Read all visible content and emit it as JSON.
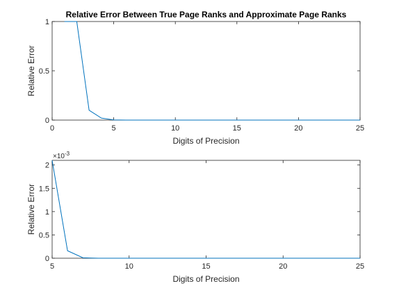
{
  "chart_data": [
    {
      "type": "line",
      "title": "Relative Error Between True Page Ranks and Approximate Page Ranks",
      "xlabel": "Digits of Precision",
      "ylabel": "Relative Error",
      "xlim": [
        0,
        25
      ],
      "ylim": [
        0,
        1
      ],
      "x_ticks": [
        0,
        5,
        10,
        15,
        20,
        25
      ],
      "x_tick_labels": [
        "0",
        "5",
        "10",
        "15",
        "20",
        "25"
      ],
      "y_ticks": [
        0,
        0.5,
        1
      ],
      "y_tick_labels": [
        "0",
        "0.5",
        "1"
      ],
      "grid": false,
      "line_color": "#0072BD",
      "series": [
        {
          "x": [
            1,
            2,
            3,
            4,
            5,
            6,
            7,
            8,
            9,
            10,
            11,
            12,
            13,
            14,
            15,
            16,
            17,
            18,
            19,
            20,
            21,
            22,
            23,
            24,
            25
          ],
          "y": [
            1,
            1,
            0.1,
            0.02,
            0.0021,
            0.00016,
            1e-05,
            0,
            0,
            0,
            0,
            0,
            0,
            0,
            0,
            0,
            0,
            0,
            0,
            0,
            0,
            0,
            0,
            0,
            0
          ]
        }
      ]
    },
    {
      "type": "line",
      "title": "",
      "xlabel": "Digits of Precision",
      "ylabel": "Relative Error",
      "xlim": [
        5,
        25
      ],
      "ylim": [
        0,
        2.1
      ],
      "y_exponent_label": "×10",
      "y_exponent_power": "-3",
      "x_ticks": [
        5,
        10,
        15,
        20,
        25
      ],
      "x_tick_labels": [
        "5",
        "10",
        "15",
        "20",
        "25"
      ],
      "y_ticks": [
        0,
        0.5,
        1,
        1.5,
        2
      ],
      "y_tick_labels": [
        "0",
        "0.5",
        "1",
        "1.5",
        "2"
      ],
      "grid": false,
      "line_color": "#0072BD",
      "series": [
        {
          "x": [
            5,
            6,
            7,
            8,
            9,
            10,
            11,
            12,
            13,
            14,
            15,
            16,
            17,
            18,
            19,
            20,
            21,
            22,
            23,
            24,
            25
          ],
          "y": [
            2.1,
            0.16,
            0.01,
            0,
            0,
            0,
            0,
            0,
            0,
            0,
            0,
            0,
            0,
            0,
            0,
            0,
            0,
            0,
            0,
            0,
            0
          ]
        }
      ]
    }
  ]
}
